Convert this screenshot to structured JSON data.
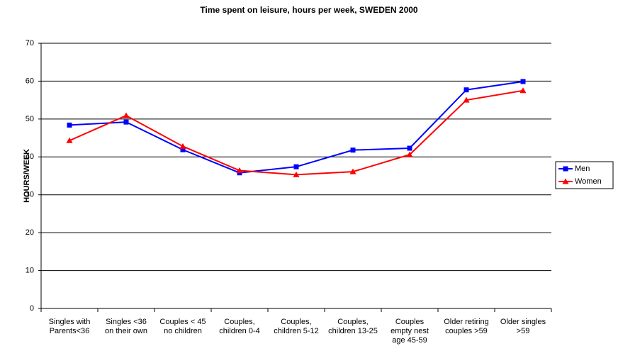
{
  "chart_data": {
    "type": "line",
    "title": "Time spent on leisure, hours per week, SWEDEN 2000",
    "y_label": "HOURS/WEEK",
    "categories": [
      [
        "Singles with",
        "Parents<36"
      ],
      [
        "Singles  <36",
        "on their own"
      ],
      [
        "Couples < 45",
        "no children"
      ],
      [
        "Couples,",
        "children 0-4"
      ],
      [
        "Couples,",
        "children 5-12"
      ],
      [
        "Couples,",
        "children 13-25"
      ],
      [
        "Couples",
        "empty nest",
        "age 45-59"
      ],
      [
        "Older retiring",
        "couples >59"
      ],
      [
        "Older singles",
        ">59"
      ]
    ],
    "series": [
      {
        "name": "Men",
        "color": "#0000ff",
        "marker": "square",
        "values": [
          48.4,
          49.2,
          41.9,
          35.8,
          37.4,
          41.8,
          42.3,
          57.7,
          59.9
        ]
      },
      {
        "name": "Women",
        "color": "#ff0000",
        "marker": "triangle",
        "values": [
          44.3,
          50.9,
          42.8,
          36.4,
          35.3,
          36.1,
          40.6,
          55.0,
          57.5
        ]
      }
    ],
    "ylim": [
      0,
      70
    ],
    "yticks": [
      0,
      10,
      20,
      30,
      40,
      50,
      60,
      70
    ],
    "grid": true,
    "legend": "right"
  }
}
